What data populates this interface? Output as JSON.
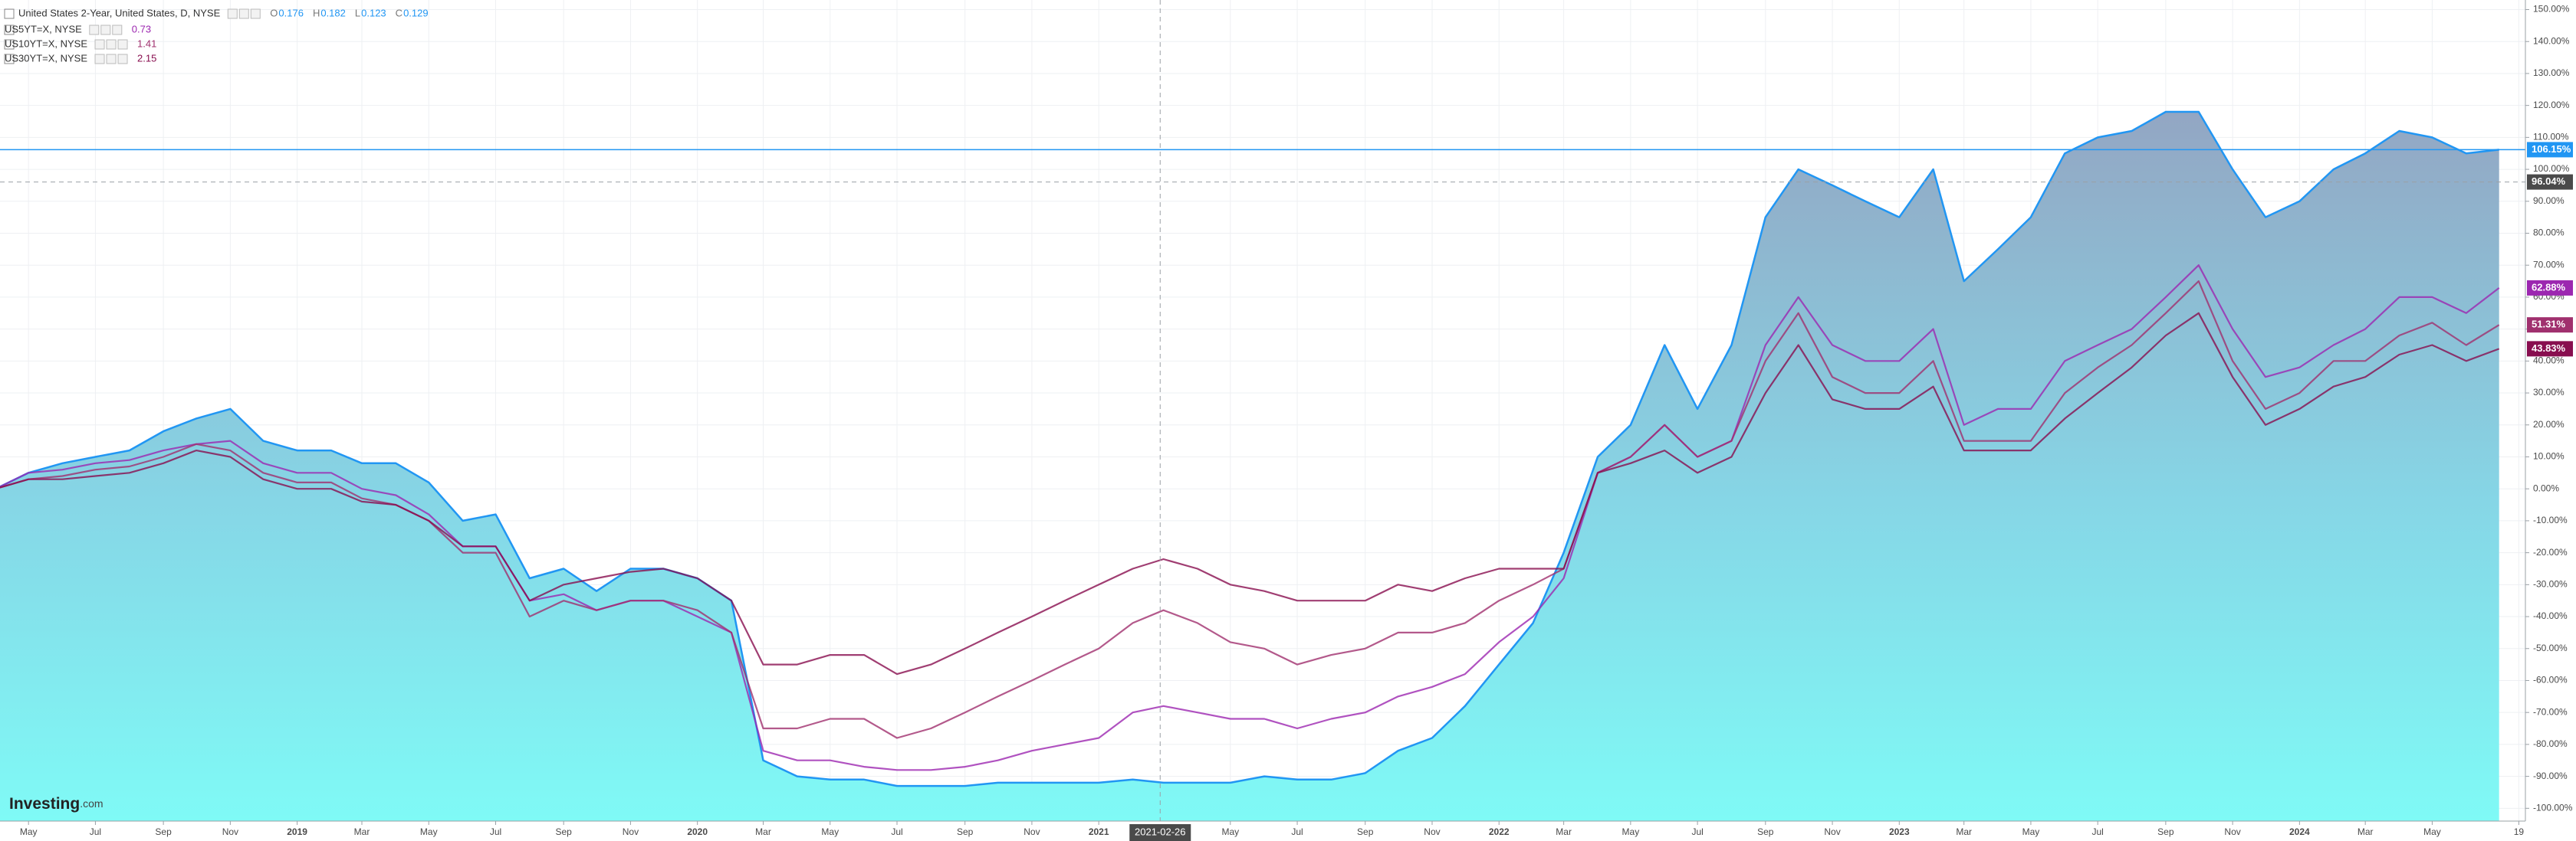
{
  "chart_data": {
    "type": "line",
    "x": [
      "2018-04",
      "2018-05",
      "2018-06",
      "2018-07",
      "2018-08",
      "2018-09",
      "2018-10",
      "2018-11",
      "2018-12",
      "2019-01",
      "2019-02",
      "2019-03",
      "2019-04",
      "2019-05",
      "2019-06",
      "2019-07",
      "2019-08",
      "2019-09",
      "2019-10",
      "2019-11",
      "2019-12",
      "2020-01",
      "2020-02",
      "2020-03",
      "2020-04",
      "2020-05",
      "2020-06",
      "2020-07",
      "2020-08",
      "2020-09",
      "2020-10",
      "2020-11",
      "2020-12",
      "2021-01",
      "2021-02",
      "2021-03",
      "2021-04",
      "2021-05",
      "2021-06",
      "2021-07",
      "2021-08",
      "2021-09",
      "2021-10",
      "2021-11",
      "2021-12",
      "2022-01",
      "2022-02",
      "2022-03",
      "2022-04",
      "2022-05",
      "2022-06",
      "2022-07",
      "2022-08",
      "2022-09",
      "2022-10",
      "2022-11",
      "2022-12",
      "2023-01",
      "2023-02",
      "2023-03",
      "2023-04",
      "2023-05",
      "2023-06",
      "2023-07",
      "2023-08",
      "2023-09",
      "2023-10",
      "2023-11",
      "2023-12",
      "2024-01",
      "2024-02",
      "2024-03",
      "2024-04",
      "2024-05",
      "2024-06",
      "2024-07"
    ],
    "series": [
      {
        "name": "United States 2-Year, United States, D, NYSE",
        "style": "area",
        "color": "#2196f3",
        "last_label": "106.15%",
        "ohlc": [
          {
            "key": "O",
            "value": 0.176
          },
          {
            "key": "H",
            "value": 0.182
          },
          {
            "key": "L",
            "value": 0.123
          },
          {
            "key": "C",
            "value": 0.129
          }
        ],
        "values": [
          0,
          5,
          8,
          10,
          12,
          18,
          22,
          25,
          15,
          12,
          12,
          8,
          8,
          2,
          -10,
          -8,
          -28,
          -25,
          -32,
          -25,
          -25,
          -28,
          -35,
          -85,
          -90,
          -91,
          -91,
          -93,
          -93,
          -93,
          -92,
          -92,
          -92,
          -92,
          -91,
          -92,
          -92,
          -92,
          -90,
          -91,
          -91,
          -89,
          -82,
          -78,
          -68,
          -55,
          -42,
          -20,
          10,
          20,
          45,
          25,
          45,
          85,
          100,
          95,
          90,
          85,
          100,
          65,
          75,
          85,
          105,
          110,
          112,
          118,
          118,
          100,
          85,
          90,
          100,
          105,
          112,
          110,
          105,
          106.15
        ]
      },
      {
        "name": "US5YT=X, NYSE",
        "style": "line",
        "color": "#9c27b0",
        "legend_value": 0.73,
        "last_label": "62.88%",
        "values": [
          0,
          5,
          6,
          8,
          9,
          12,
          14,
          15,
          8,
          5,
          5,
          0,
          -2,
          -8,
          -18,
          -18,
          -35,
          -33,
          -38,
          -35,
          -35,
          -40,
          -45,
          -82,
          -85,
          -85,
          -87,
          -88,
          -88,
          -87,
          -85,
          -82,
          -80,
          -78,
          -70,
          -68,
          -70,
          -72,
          -72,
          -75,
          -72,
          -70,
          -65,
          -62,
          -58,
          -48,
          -40,
          -28,
          5,
          10,
          20,
          10,
          15,
          45,
          60,
          45,
          40,
          40,
          50,
          20,
          25,
          25,
          40,
          45,
          50,
          60,
          70,
          50,
          35,
          38,
          45,
          50,
          60,
          60,
          55,
          62.88
        ]
      },
      {
        "name": "US10YT=X, NYSE",
        "style": "line",
        "color": "#a0306e",
        "legend_value": 1.41,
        "last_label": "51.31%",
        "values": [
          0,
          3,
          4,
          6,
          7,
          10,
          14,
          12,
          5,
          2,
          2,
          -3,
          -5,
          -10,
          -20,
          -20,
          -40,
          -35,
          -38,
          -35,
          -35,
          -38,
          -45,
          -75,
          -75,
          -72,
          -72,
          -78,
          -75,
          -70,
          -65,
          -60,
          -55,
          -50,
          -42,
          -38,
          -42,
          -48,
          -50,
          -55,
          -52,
          -50,
          -45,
          -45,
          -42,
          -35,
          -30,
          -25,
          5,
          10,
          20,
          10,
          15,
          40,
          55,
          35,
          30,
          30,
          40,
          15,
          15,
          15,
          30,
          38,
          45,
          55,
          65,
          40,
          25,
          30,
          40,
          40,
          48,
          52,
          45,
          51.31
        ]
      },
      {
        "name": "US30YT=X, NYSE",
        "style": "line",
        "color": "#880e4f",
        "legend_value": 2.15,
        "last_label": "43.83%",
        "values": [
          0,
          3,
          3,
          4,
          5,
          8,
          12,
          10,
          3,
          0,
          0,
          -4,
          -5,
          -10,
          -18,
          -18,
          -35,
          -30,
          -28,
          -26,
          -25,
          -28,
          -35,
          -55,
          -55,
          -52,
          -52,
          -58,
          -55,
          -50,
          -45,
          -40,
          -35,
          -30,
          -25,
          -22,
          -25,
          -30,
          -32,
          -35,
          -35,
          -35,
          -30,
          -32,
          -28,
          -25,
          -25,
          -25,
          5,
          8,
          12,
          5,
          10,
          30,
          45,
          28,
          25,
          25,
          32,
          12,
          12,
          12,
          22,
          30,
          38,
          48,
          55,
          35,
          20,
          25,
          32,
          35,
          42,
          45,
          40,
          43.83
        ]
      }
    ],
    "ylim": [
      -104,
      153
    ],
    "yticks": [
      {
        "value": -100,
        "label": "-100.00%"
      },
      {
        "value": -90,
        "label": "-90.00%"
      },
      {
        "value": -80,
        "label": "-80.00%"
      },
      {
        "value": -70,
        "label": "-70.00%"
      },
      {
        "value": -60,
        "label": "-60.00%"
      },
      {
        "value": -50,
        "label": "-50.00%"
      },
      {
        "value": -40,
        "label": "-40.00%"
      },
      {
        "value": -30,
        "label": "-30.00%"
      },
      {
        "value": -20,
        "label": "-20.00%"
      },
      {
        "value": -10,
        "label": "-10.00%"
      },
      {
        "value": 0,
        "label": "0.00%"
      },
      {
        "value": 10,
        "label": "10.00%"
      },
      {
        "value": 20,
        "label": "20.00%"
      },
      {
        "value": 30,
        "label": "30.00%"
      },
      {
        "value": 40,
        "label": "40.00%"
      },
      {
        "value": 50,
        "label": "50.00%"
      },
      {
        "value": 60,
        "label": "60.00%"
      },
      {
        "value": 70,
        "label": "70.00%"
      },
      {
        "value": 80,
        "label": "80.00%"
      },
      {
        "value": 90,
        "label": "90.00%"
      },
      {
        "value": 100,
        "label": "100.00%"
      },
      {
        "value": 110,
        "label": "110.00%"
      },
      {
        "value": 120,
        "label": "120.00%"
      },
      {
        "value": 130,
        "label": "130.00%"
      },
      {
        "value": 140,
        "label": "140.00%"
      },
      {
        "value": 150,
        "label": "150.00%"
      }
    ],
    "xlim": [
      "2018-04-05",
      "2024-07-25"
    ],
    "xticks": [
      {
        "value": "2018-05",
        "label": "May"
      },
      {
        "value": "2018-07",
        "label": "Jul"
      },
      {
        "value": "2018-09",
        "label": "Sep"
      },
      {
        "value": "2018-11",
        "label": "Nov"
      },
      {
        "value": "2019-01",
        "label": "2019"
      },
      {
        "value": "2019-03",
        "label": "Mar"
      },
      {
        "value": "2019-05",
        "label": "May"
      },
      {
        "value": "2019-07",
        "label": "Jul"
      },
      {
        "value": "2019-09",
        "label": "Sep"
      },
      {
        "value": "2019-11",
        "label": "Nov"
      },
      {
        "value": "2020-01",
        "label": "2020"
      },
      {
        "value": "2020-03",
        "label": "Mar"
      },
      {
        "value": "2020-05",
        "label": "May"
      },
      {
        "value": "2020-07",
        "label": "Jul"
      },
      {
        "value": "2020-09",
        "label": "Sep"
      },
      {
        "value": "2020-11",
        "label": "Nov"
      },
      {
        "value": "2021-01",
        "label": "2021"
      },
      {
        "value": "2021-05",
        "label": "May"
      },
      {
        "value": "2021-07",
        "label": "Jul"
      },
      {
        "value": "2021-09",
        "label": "Sep"
      },
      {
        "value": "2021-11",
        "label": "Nov"
      },
      {
        "value": "2022-01",
        "label": "2022"
      },
      {
        "value": "2022-03",
        "label": "Mar"
      },
      {
        "value": "2022-05",
        "label": "May"
      },
      {
        "value": "2022-07",
        "label": "Jul"
      },
      {
        "value": "2022-09",
        "label": "Sep"
      },
      {
        "value": "2022-11",
        "label": "Nov"
      },
      {
        "value": "2023-01",
        "label": "2023"
      },
      {
        "value": "2023-03",
        "label": "Mar"
      },
      {
        "value": "2023-05",
        "label": "May"
      },
      {
        "value": "2023-07",
        "label": "Jul"
      },
      {
        "value": "2023-09",
        "label": "Sep"
      },
      {
        "value": "2023-11",
        "label": "Nov"
      },
      {
        "value": "2024-01",
        "label": "2024"
      },
      {
        "value": "2024-03",
        "label": "Mar"
      },
      {
        "value": "2024-05",
        "label": "May"
      },
      {
        "value": "2024-07-19",
        "label": "19"
      }
    ],
    "grid": true,
    "crosshair": {
      "x": "2021-02-26",
      "y": {
        "value": 96.04,
        "label": "96.04%"
      }
    },
    "watermark": {
      "brand": "Investing",
      "suffix": ".com"
    }
  }
}
